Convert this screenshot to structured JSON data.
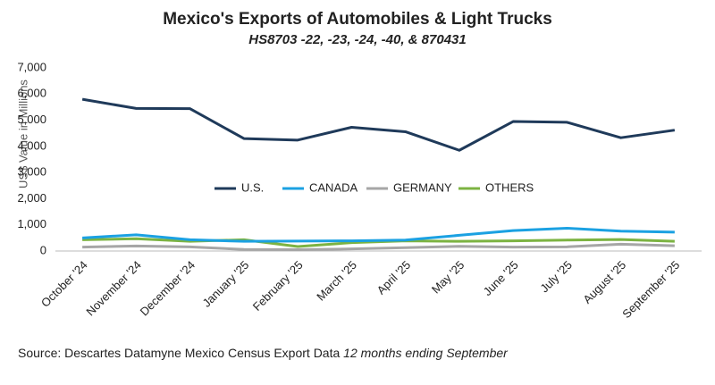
{
  "chart_data": {
    "type": "line",
    "title": "Mexico's Exports of Automobiles & Light Trucks",
    "subtitle": "HS8703 -22, -23, -24, -40, & 870431",
    "y_label": "US$ Value in Millions",
    "source": "Source: Descartes Datamyne Mexico Census Export Data",
    "source_note": "12 months ending September",
    "categories": [
      "October '24",
      "November '24",
      "December '24",
      "January '25",
      "February '25",
      "March '25",
      "April '25",
      "May '25",
      "June '25",
      "July '25",
      "August '25",
      "September '25"
    ],
    "series": [
      {
        "name": "U.S.",
        "color": "#1f3a5a",
        "values": [
          5800,
          5450,
          5440,
          4300,
          4240,
          4730,
          4560,
          3850,
          4950,
          4920,
          4330,
          4620
        ]
      },
      {
        "name": "CANADA",
        "color": "#1ba1e2",
        "values": [
          500,
          620,
          430,
          370,
          380,
          390,
          420,
          600,
          780,
          870,
          760,
          720
        ]
      },
      {
        "name": "GERMANY",
        "color": "#a6a6a6",
        "values": [
          150,
          190,
          160,
          60,
          50,
          80,
          130,
          180,
          150,
          160,
          260,
          200
        ]
      },
      {
        "name": "OTHERS",
        "color": "#7cb342",
        "values": [
          430,
          470,
          370,
          430,
          170,
          320,
          390,
          370,
          390,
          420,
          440,
          370
        ]
      }
    ],
    "ylim": [
      0,
      7000
    ],
    "yticks": [
      0,
      {
        "value": 1000,
        "label": "1,000"
      },
      {
        "value": 2000,
        "label": "2,000"
      },
      {
        "value": 3000,
        "label": "3,000"
      },
      {
        "value": 4000,
        "label": "4,000"
      },
      {
        "value": 5000,
        "label": "5,000"
      },
      {
        "value": 6000,
        "label": "6,000"
      },
      {
        "value": 7000,
        "label": "7,000"
      }
    ],
    "grid": false,
    "legend": "center"
  }
}
